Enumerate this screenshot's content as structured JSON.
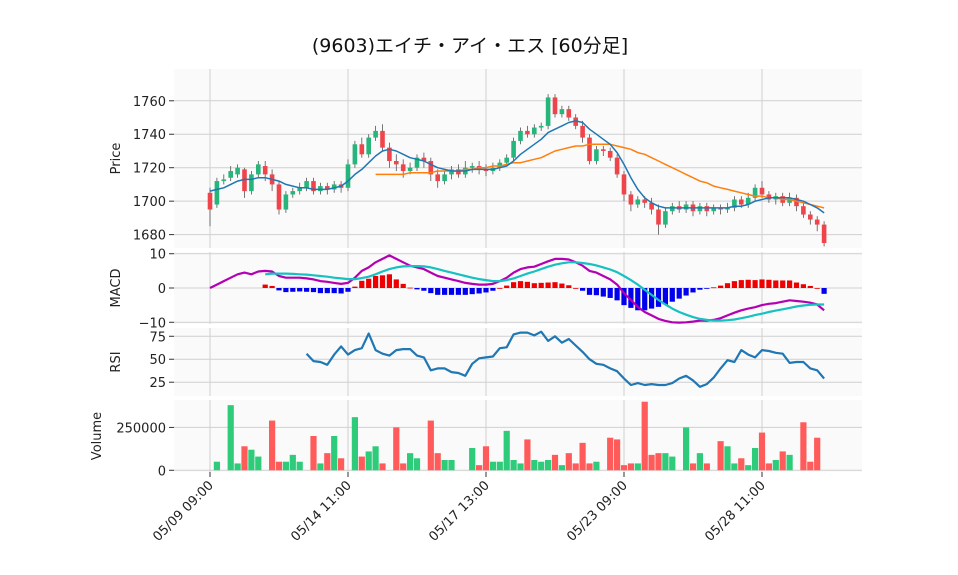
{
  "chart_data": {
    "type": "candlestick",
    "title": "(9603)エイチ・アイ・エス [60分足]",
    "x_tick_labels": [
      "05/09 09:00",
      "05/14 11:00",
      "05/17 13:00",
      "05/23 09:00",
      "05/28 11:00"
    ],
    "x_tick_index": [
      0,
      20,
      40,
      60,
      80
    ],
    "colors": {
      "up": "#26b57a",
      "down": "#f0444b",
      "ma_short": "#1f77b4",
      "ma_long": "#ff7f0e",
      "macd": "#b300b3",
      "signal": "#17c1c1",
      "hist_pos": "#ee0000",
      "hist_neg": "#0000ee",
      "rsi": "#1f77b4",
      "vol_up": "#2ecc7a",
      "vol_down": "#ff5b5b"
    },
    "price_panel": {
      "ylabel": "Price",
      "ylim": [
        1672,
        1779
      ],
      "yticks": [
        1680,
        1700,
        1720,
        1740,
        1760
      ],
      "candles": [
        [
          1705,
          1695,
          1708,
          1685
        ],
        [
          1698,
          1712,
          1714,
          1696
        ],
        [
          1712,
          1713,
          1716,
          1710
        ],
        [
          1714,
          1718,
          1721,
          1712
        ],
        [
          1716,
          1720,
          1722,
          1714
        ],
        [
          1719,
          1706,
          1720,
          1702
        ],
        [
          1706,
          1716,
          1718,
          1704
        ],
        [
          1716,
          1722,
          1724,
          1714
        ],
        [
          1721,
          1716,
          1724,
          1712
        ],
        [
          1716,
          1710,
          1719,
          1706
        ],
        [
          1710,
          1695,
          1712,
          1692
        ],
        [
          1695,
          1704,
          1706,
          1693
        ],
        [
          1704,
          1706,
          1708,
          1702
        ],
        [
          1706,
          1708,
          1711,
          1704
        ],
        [
          1708,
          1712,
          1714,
          1706
        ],
        [
          1712,
          1706,
          1714,
          1704
        ],
        [
          1706,
          1709,
          1711,
          1704
        ],
        [
          1709,
          1707,
          1711,
          1704
        ],
        [
          1707,
          1710,
          1712,
          1705
        ],
        [
          1710,
          1708,
          1712,
          1705
        ],
        [
          1708,
          1722,
          1725,
          1706
        ],
        [
          1722,
          1734,
          1736,
          1720
        ],
        [
          1734,
          1728,
          1738,
          1726
        ],
        [
          1728,
          1738,
          1740,
          1726
        ],
        [
          1738,
          1742,
          1745,
          1736
        ],
        [
          1742,
          1732,
          1746,
          1730
        ],
        [
          1732,
          1724,
          1735,
          1720
        ],
        [
          1724,
          1722,
          1728,
          1718
        ],
        [
          1722,
          1718,
          1725,
          1714
        ],
        [
          1718,
          1720,
          1723,
          1716
        ],
        [
          1720,
          1726,
          1728,
          1718
        ],
        [
          1726,
          1724,
          1729,
          1720
        ],
        [
          1724,
          1716,
          1726,
          1712
        ],
        [
          1716,
          1712,
          1719,
          1708
        ],
        [
          1712,
          1716,
          1718,
          1710
        ],
        [
          1716,
          1719,
          1721,
          1713
        ],
        [
          1719,
          1716,
          1722,
          1714
        ],
        [
          1716,
          1720,
          1724,
          1714
        ],
        [
          1720,
          1721,
          1723,
          1717
        ],
        [
          1721,
          1719,
          1724,
          1716
        ],
        [
          1719,
          1718,
          1722,
          1715
        ],
        [
          1718,
          1720,
          1723,
          1716
        ],
        [
          1720,
          1723,
          1725,
          1718
        ],
        [
          1723,
          1726,
          1728,
          1721
        ],
        [
          1726,
          1736,
          1738,
          1724
        ],
        [
          1736,
          1742,
          1744,
          1734
        ],
        [
          1742,
          1740,
          1745,
          1738
        ],
        [
          1740,
          1744,
          1746,
          1738
        ],
        [
          1744,
          1745,
          1747,
          1742
        ],
        [
          1745,
          1762,
          1764,
          1743
        ],
        [
          1762,
          1752,
          1764,
          1750
        ],
        [
          1752,
          1755,
          1757,
          1750
        ],
        [
          1755,
          1750,
          1757,
          1748
        ],
        [
          1750,
          1745,
          1752,
          1743
        ],
        [
          1745,
          1738,
          1748,
          1735
        ],
        [
          1738,
          1724,
          1740,
          1722
        ],
        [
          1724,
          1731,
          1733,
          1722
        ],
        [
          1731,
          1730,
          1733,
          1727
        ],
        [
          1730,
          1726,
          1732,
          1724
        ],
        [
          1726,
          1716,
          1728,
          1714
        ],
        [
          1716,
          1704,
          1718,
          1700
        ],
        [
          1704,
          1698,
          1706,
          1694
        ],
        [
          1698,
          1701,
          1703,
          1696
        ],
        [
          1701,
          1699,
          1703,
          1696
        ],
        [
          1699,
          1695,
          1702,
          1692
        ],
        [
          1695,
          1686,
          1698,
          1680
        ],
        [
          1686,
          1694,
          1696,
          1684
        ],
        [
          1694,
          1697,
          1699,
          1692
        ],
        [
          1697,
          1695,
          1700,
          1693
        ],
        [
          1695,
          1698,
          1700,
          1693
        ],
        [
          1698,
          1694,
          1700,
          1691
        ],
        [
          1694,
          1697,
          1699,
          1692
        ],
        [
          1697,
          1694,
          1699,
          1691
        ],
        [
          1694,
          1696,
          1698,
          1692
        ],
        [
          1696,
          1695,
          1698,
          1692
        ],
        [
          1695,
          1696,
          1699,
          1693
        ],
        [
          1696,
          1701,
          1703,
          1694
        ],
        [
          1701,
          1698,
          1703,
          1696
        ],
        [
          1698,
          1702,
          1705,
          1696
        ],
        [
          1702,
          1708,
          1710,
          1700
        ],
        [
          1708,
          1704,
          1712,
          1702
        ],
        [
          1704,
          1701,
          1706,
          1699
        ],
        [
          1701,
          1703,
          1705,
          1698
        ],
        [
          1703,
          1699,
          1705,
          1697
        ],
        [
          1699,
          1702,
          1705,
          1697
        ],
        [
          1702,
          1697,
          1704,
          1694
        ],
        [
          1697,
          1692,
          1699,
          1690
        ],
        [
          1692,
          1689,
          1694,
          1686
        ],
        [
          1689,
          1686,
          1691,
          1682
        ],
        [
          1686,
          1675,
          1688,
          1673
        ]
      ],
      "ma_short": [
        1706,
        1707,
        1708,
        1710,
        1712,
        1713,
        1713,
        1714,
        1714,
        1713,
        1712,
        1710,
        1709,
        1708,
        1708,
        1707,
        1707,
        1707,
        1708,
        1709,
        1712,
        1716,
        1719,
        1723,
        1727,
        1730,
        1731,
        1730,
        1728,
        1726,
        1725,
        1724,
        1722,
        1720,
        1719,
        1718,
        1718,
        1718,
        1719,
        1719,
        1719,
        1719,
        1720,
        1721,
        1724,
        1728,
        1731,
        1734,
        1737,
        1741,
        1743,
        1745,
        1747,
        1748,
        1747,
        1743,
        1740,
        1737,
        1734,
        1729,
        1722,
        1714,
        1707,
        1702,
        1699,
        1697,
        1696,
        1696,
        1696,
        1696,
        1696,
        1696,
        1696,
        1696,
        1696,
        1696,
        1697,
        1697,
        1698,
        1700,
        1701,
        1702,
        1702,
        1702,
        1702,
        1701,
        1700,
        1698,
        1696,
        1693
      ],
      "ma_long": [
        null,
        null,
        null,
        null,
        null,
        null,
        null,
        null,
        null,
        null,
        null,
        null,
        null,
        null,
        null,
        null,
        null,
        null,
        null,
        null,
        null,
        null,
        null,
        null,
        1716,
        1716,
        1716,
        1716,
        1716,
        1717,
        1717,
        1717,
        1717,
        1718,
        1718,
        1718,
        1718,
        1719,
        1719,
        1720,
        1720,
        1721,
        1721,
        1722,
        1723,
        1723,
        1724,
        1725,
        1726,
        1728,
        1730,
        1731,
        1732,
        1733,
        1733,
        1734,
        1734,
        1734,
        1734,
        1733,
        1732,
        1731,
        1729,
        1728,
        1726,
        1724,
        1722,
        1720,
        1718,
        1716,
        1714,
        1712,
        1711,
        1709,
        1708,
        1707,
        1706,
        1705,
        1704,
        1703,
        1703,
        1702,
        1702,
        1701,
        1701,
        1700,
        1699,
        1698,
        1697,
        1696
      ]
    },
    "macd_panel": {
      "ylabel": "MACD",
      "ylim": [
        -10.5,
        10.5
      ],
      "yticks": [
        -10,
        0,
        10
      ],
      "ytick_labels": [
        "−10",
        "0",
        "10"
      ],
      "macd": [
        0,
        1,
        2,
        3,
        4,
        4.5,
        4,
        4.8,
        5,
        4.8,
        3.5,
        3,
        3,
        3,
        2.8,
        2.5,
        2,
        1.8,
        1.5,
        1.2,
        1.5,
        3,
        5,
        6,
        7.5,
        8.5,
        9.5,
        8.5,
        7.5,
        6.5,
        6,
        5.5,
        4.5,
        3.5,
        3,
        2.5,
        2,
        1.5,
        1.2,
        1,
        1,
        1.2,
        2,
        3,
        4.5,
        5.5,
        6,
        6.2,
        7,
        7.8,
        8.5,
        8.5,
        8.3,
        7.5,
        6.5,
        5,
        4.5,
        3.5,
        2.5,
        1,
        -1.5,
        -3.5,
        -5.5,
        -7,
        -8,
        -9,
        -9.6,
        -10,
        -10.1,
        -10,
        -9.8,
        -9.5,
        -9.5,
        -9.3,
        -8.8,
        -8,
        -7.2,
        -6.5,
        -6,
        -5.6,
        -5,
        -4.6,
        -4.4,
        -4,
        -3.6,
        -3.8,
        -4,
        -4.3,
        -4.8,
        -6.5
      ],
      "signal": [
        null,
        null,
        null,
        null,
        null,
        null,
        null,
        null,
        4,
        4.2,
        4.2,
        4.2,
        4.1,
        4,
        3.9,
        3.7,
        3.5,
        3.3,
        3,
        2.8,
        2.6,
        2.6,
        2.9,
        3.3,
        4,
        4.8,
        5.5,
        6,
        6.3,
        6.4,
        6.4,
        6.3,
        6,
        5.5,
        5,
        4.5,
        4,
        3.5,
        3,
        2.6,
        2.3,
        2,
        2,
        2.3,
        2.8,
        3.5,
        4.2,
        4.8,
        5.5,
        6.2,
        6.8,
        7.2,
        7.5,
        7.5,
        7.3,
        7,
        6.6,
        6,
        5.4,
        4.6,
        3.5,
        2.3,
        1,
        -0.5,
        -2,
        -3.5,
        -4.8,
        -6,
        -7,
        -7.8,
        -8.5,
        -9,
        -9.3,
        -9.5,
        -9.5,
        -9.4,
        -9.2,
        -8.8,
        -8.4,
        -7.9,
        -7.5,
        -7,
        -6.6,
        -6.2,
        -5.8,
        -5.4,
        -5.1,
        -4.9,
        -4.8,
        -4.8
      ]
    },
    "rsi_panel": {
      "ylabel": "RSI",
      "ylim": [
        10,
        84
      ],
      "yticks": [
        25,
        50,
        75
      ],
      "values": [
        null,
        null,
        null,
        null,
        null,
        null,
        null,
        null,
        null,
        null,
        null,
        null,
        null,
        null,
        56,
        48,
        47,
        44,
        55,
        64,
        55,
        60,
        62,
        78,
        60,
        56,
        54,
        60,
        61,
        61,
        54,
        52,
        38,
        40,
        40,
        36,
        35,
        32,
        45,
        51,
        52,
        53,
        62,
        63,
        77,
        79,
        79,
        76,
        80,
        70,
        75,
        68,
        72,
        65,
        58,
        50,
        45,
        44,
        40,
        37,
        29,
        22,
        24,
        22,
        23,
        22,
        22,
        24,
        29,
        32,
        27,
        20,
        23,
        30,
        40,
        49,
        47,
        60,
        55,
        52,
        60,
        59,
        57,
        56,
        46,
        47,
        47,
        40,
        38,
        29
      ]
    },
    "volume_panel": {
      "ylabel": "Volume",
      "ylim": [
        -10000,
        410000
      ],
      "yticks": [
        0,
        250000
      ],
      "values": [
        null,
        50000,
        null,
        380000,
        40000,
        140000,
        120000,
        80000,
        null,
        290000,
        50000,
        50000,
        90000,
        50000,
        null,
        200000,
        40000,
        100000,
        200000,
        70000,
        null,
        310000,
        80000,
        110000,
        140000,
        40000,
        null,
        250000,
        40000,
        100000,
        70000,
        null,
        290000,
        100000,
        60000,
        60000,
        null,
        null,
        130000,
        30000,
        140000,
        50000,
        50000,
        230000,
        60000,
        40000,
        180000,
        60000,
        50000,
        60000,
        90000,
        30000,
        100000,
        40000,
        160000,
        40000,
        50000,
        null,
        190000,
        180000,
        30000,
        40000,
        40000,
        400000,
        90000,
        100000,
        100000,
        80000,
        null,
        250000,
        40000,
        100000,
        40000,
        null,
        170000,
        140000,
        40000,
        70000,
        30000,
        130000,
        220000,
        40000,
        60000,
        110000,
        90000,
        null,
        280000,
        50000,
        190000,
        null
      ]
    }
  }
}
